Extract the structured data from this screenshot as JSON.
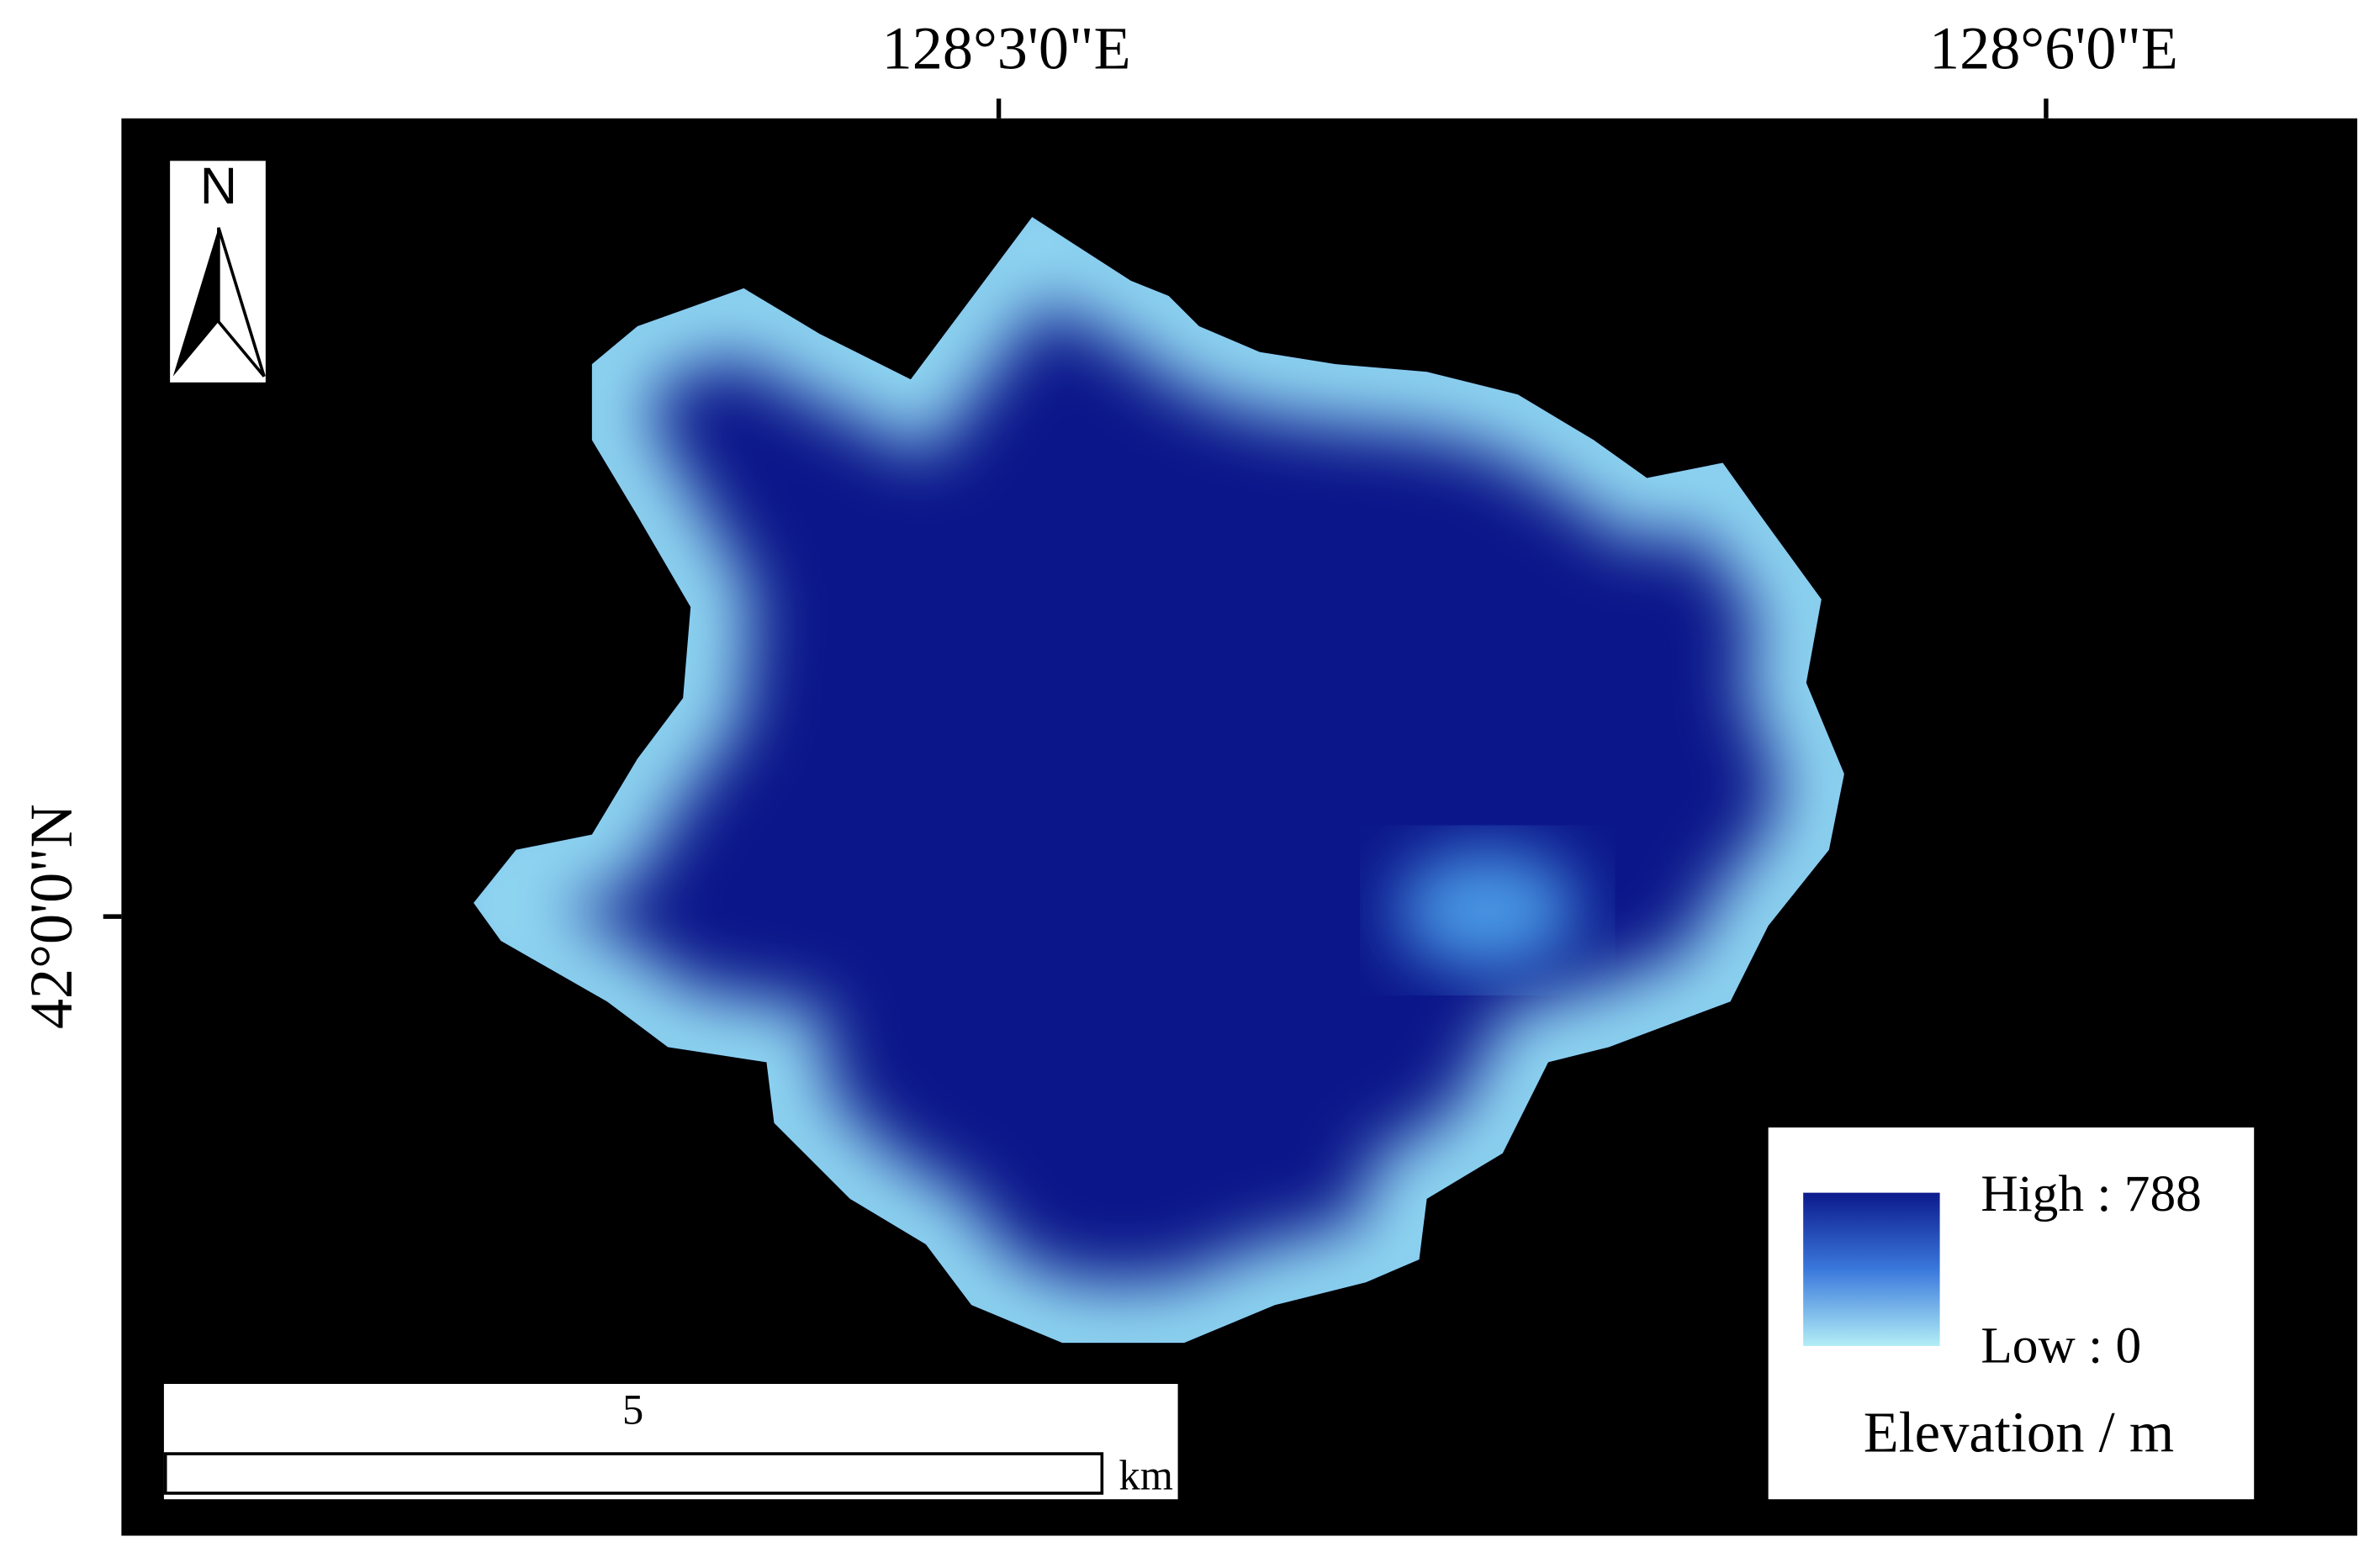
{
  "map": {
    "graticule": {
      "longitude": [
        "128°3'0\"E",
        "128°6'0\"E"
      ],
      "latitude": [
        "42°0'0\"N"
      ]
    },
    "north_arrow": "N",
    "scale_bar": {
      "label": "5",
      "unit": "km"
    },
    "legend": {
      "high": "High : 788",
      "low": "Low : 0",
      "title": "Elevation / m"
    }
  }
}
